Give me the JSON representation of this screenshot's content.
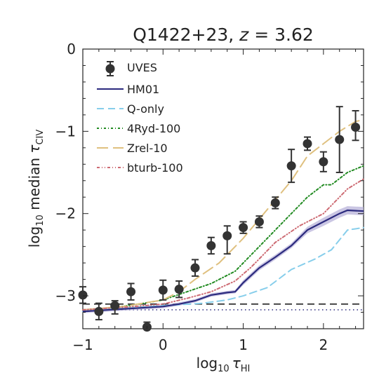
{
  "chart_data": {
    "type": "line",
    "title_main": "Q1422+23, ",
    "title_z": "z",
    "title_eq": " = 3.62",
    "xlabel_pre": "log",
    "xlabel_sub": "10",
    "xlabel_tau": "τ",
    "xlabel_tau_sub": "HI",
    "ylabel_pre": "log",
    "ylabel_sub": "10",
    "ylabel_mid": " median ",
    "ylabel_tau": "τ",
    "ylabel_tau_sub": "CIV",
    "xlim": [
      -1,
      2.5
    ],
    "ylim": [
      -3.4,
      0
    ],
    "x_ticks": [
      -1,
      0,
      1,
      2
    ],
    "x_tick_labels": [
      "−1",
      "0",
      "1",
      "2"
    ],
    "y_ticks": [
      -3,
      -2,
      -1,
      0
    ],
    "y_tick_labels": [
      "−3",
      "−2",
      "−1",
      "0"
    ],
    "legend_position": "top-left",
    "observed": {
      "name": "UVES",
      "color": "#333333",
      "x": [
        -1.0,
        -0.8,
        -0.6,
        -0.4,
        -0.2,
        0.0,
        0.2,
        0.4,
        0.6,
        0.8,
        1.0,
        1.2,
        1.4,
        1.6,
        1.8,
        2.0,
        2.2,
        2.4
      ],
      "y": [
        -2.99,
        -3.19,
        -3.12,
        -2.95,
        -3.38,
        -2.93,
        -2.92,
        -2.66,
        -2.39,
        -2.27,
        -2.17,
        -2.1,
        -1.87,
        -1.42,
        -1.15,
        -1.37,
        -1.1,
        -0.95
      ],
      "err_lo": [
        0.1,
        0.1,
        0.1,
        0.1,
        0.1,
        0.12,
        0.1,
        0.1,
        0.1,
        0.22,
        0.07,
        0.07,
        0.07,
        0.2,
        0.08,
        0.12,
        0.4,
        0.16
      ],
      "err_hi": [
        0.1,
        0.1,
        0.06,
        0.1,
        0.06,
        0.12,
        0.1,
        0.1,
        0.1,
        0.12,
        0.07,
        0.07,
        0.07,
        0.2,
        0.08,
        0.12,
        0.4,
        0.2
      ]
    },
    "series": [
      {
        "name": "HM01",
        "style": "solid",
        "color": "#2b2a7e",
        "x": [
          -1.0,
          -0.5,
          0.0,
          0.2,
          0.4,
          0.6,
          0.8,
          0.9,
          1.0,
          1.2,
          1.4,
          1.6,
          1.8,
          2.0,
          2.2,
          2.3,
          2.5
        ],
        "y": [
          -3.19,
          -3.16,
          -3.13,
          -3.1,
          -3.06,
          -2.99,
          -2.96,
          -2.95,
          -2.84,
          -2.66,
          -2.53,
          -2.39,
          -2.2,
          -2.1,
          -2.0,
          -1.96,
          -1.97
        ],
        "band_lo": [
          -3.21,
          -3.18,
          -3.15,
          -3.12,
          -3.08,
          -3.01,
          -2.98,
          -2.97,
          -2.87,
          -2.69,
          -2.56,
          -2.42,
          -2.24,
          -2.15,
          -2.05,
          -2.01,
          -2.02
        ],
        "band_hi": [
          -3.17,
          -3.14,
          -3.11,
          -3.08,
          -3.04,
          -2.97,
          -2.94,
          -2.93,
          -2.81,
          -2.63,
          -2.5,
          -2.36,
          -2.16,
          -2.05,
          -1.95,
          -1.91,
          -1.92
        ]
      },
      {
        "name": "Q-only",
        "style": "dashed",
        "color": "#87ceeb",
        "x": [
          -1.0,
          -0.5,
          0.0,
          0.5,
          0.8,
          1.0,
          1.3,
          1.6,
          1.9,
          2.1,
          2.3,
          2.5
        ],
        "y": [
          -3.19,
          -3.15,
          -3.12,
          -3.09,
          -3.05,
          -3.0,
          -2.9,
          -2.68,
          -2.55,
          -2.44,
          -2.2,
          -2.17
        ]
      },
      {
        "name": "4Ryd-100",
        "style": "dotdash",
        "color": "#228b22",
        "x": [
          -1.0,
          -0.6,
          -0.3,
          0.0,
          0.3,
          0.6,
          0.9,
          1.1,
          1.3,
          1.5,
          1.8,
          2.0,
          2.1,
          2.3,
          2.5
        ],
        "y": [
          -3.17,
          -3.14,
          -3.1,
          -3.05,
          -2.95,
          -2.85,
          -2.7,
          -2.5,
          -2.3,
          -2.1,
          -1.8,
          -1.65,
          -1.65,
          -1.5,
          -1.42
        ]
      },
      {
        "name": "Zrel-10",
        "style": "longdash",
        "color": "#dfc07f",
        "x": [
          -1.0,
          -0.5,
          0.0,
          0.2,
          0.4,
          0.7,
          1.0,
          1.3,
          1.6,
          1.8,
          2.0,
          2.2,
          2.4,
          2.5
        ],
        "y": [
          -3.17,
          -3.13,
          -3.05,
          -2.95,
          -2.8,
          -2.6,
          -2.3,
          -1.95,
          -1.6,
          -1.3,
          -1.15,
          -1.0,
          -0.88,
          -0.86
        ]
      },
      {
        "name": "bturb-100",
        "style": "dashdotdot",
        "color": "#cd6b73",
        "x": [
          -1.0,
          -0.5,
          0.0,
          0.3,
          0.6,
          0.9,
          1.1,
          1.4,
          1.7,
          2.0,
          2.3,
          2.5
        ],
        "y": [
          -3.17,
          -3.14,
          -3.1,
          -3.03,
          -2.95,
          -2.82,
          -2.65,
          -2.35,
          -2.15,
          -2.0,
          -1.7,
          -1.58
        ]
      }
    ],
    "ref_lines": [
      {
        "y": -3.1,
        "style": "dashed",
        "color": "#222222"
      },
      {
        "y": -3.17,
        "style": "dotted",
        "color": "#2b2a7e"
      }
    ]
  }
}
